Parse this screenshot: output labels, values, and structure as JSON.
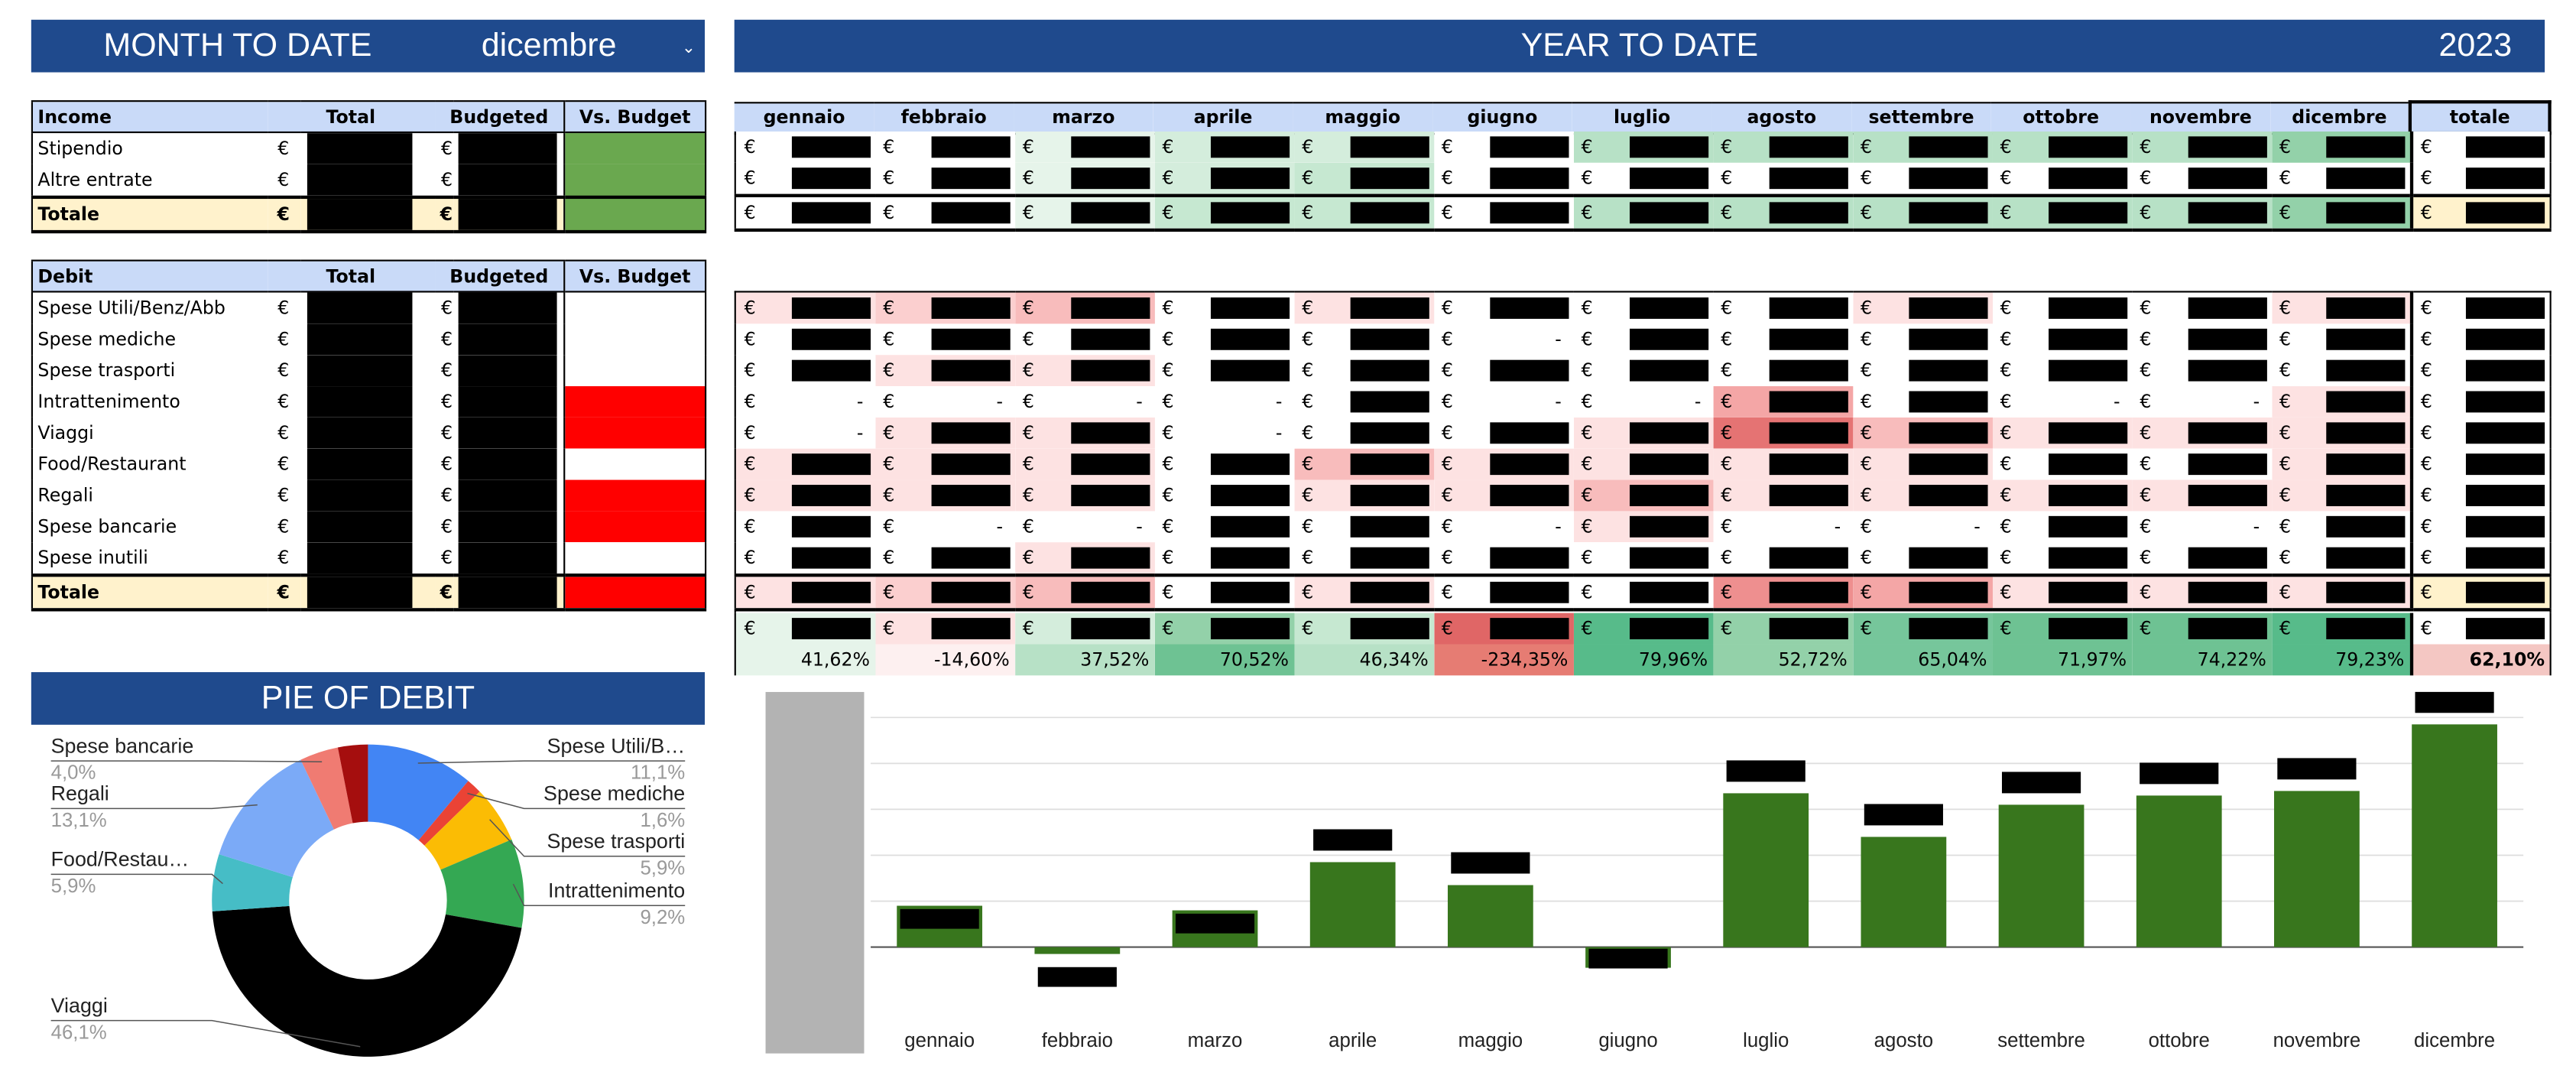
{
  "month_to_date": {
    "title": "MONTH TO DATE",
    "month": "dicembre",
    "dropdown_icon": "caret-down"
  },
  "year_to_date": {
    "title": "YEAR TO DATE",
    "year": "2023"
  },
  "pie": {
    "title": "PIE OF DEBIT"
  },
  "currency": "€",
  "income_table": {
    "headers": [
      "Income",
      "Total",
      "Budgeted",
      "Vs. Budget"
    ],
    "rows": [
      {
        "label": "Stipendio",
        "vs_budget_color": "#6aa84f"
      },
      {
        "label": "Altre entrate",
        "vs_budget_color": "#6aa84f"
      }
    ],
    "total": {
      "label": "Totale",
      "vs_budget_color": "#6aa84f"
    }
  },
  "debit_table": {
    "headers": [
      "Debit",
      "Total",
      "Budgeted",
      "Vs. Budget"
    ],
    "rows": [
      {
        "label": "Spese Utili/Benz/Abb",
        "vs_budget_color": "#ffffff"
      },
      {
        "label": "Spese mediche",
        "vs_budget_color": "#ffffff"
      },
      {
        "label": "Spese trasporti",
        "vs_budget_color": "#ffffff"
      },
      {
        "label": "Intrattenimento",
        "vs_budget_color": "#ff0000"
      },
      {
        "label": "Viaggi",
        "vs_budget_color": "#ff0000"
      },
      {
        "label": "Food/Restaurant",
        "vs_budget_color": "#ffffff"
      },
      {
        "label": "Regali",
        "vs_budget_color": "#ff0000"
      },
      {
        "label": "Spese bancarie",
        "vs_budget_color": "#ff0000"
      },
      {
        "label": "Spese inutili",
        "vs_budget_color": "#ffffff"
      }
    ],
    "total": {
      "label": "Totale",
      "vs_budget_color": "#ff0000"
    }
  },
  "months": [
    "gennaio",
    "febbraio",
    "marzo",
    "aprile",
    "maggio",
    "giugno",
    "luglio",
    "agosto",
    "settembre",
    "ottobre",
    "novembre",
    "dicembre"
  ],
  "total_header": "totale",
  "ytd_income_rows": [
    {
      "dash": [
        0,
        0,
        0,
        0,
        0,
        0,
        0,
        0,
        0,
        0,
        0,
        0,
        0
      ],
      "bg": [
        "#fff",
        "#fff",
        "#e6f4ea",
        "#d4eddc",
        "#d4eddc",
        "#fff",
        "#b7e1c6",
        "#b7e1c6",
        "#b7e1c6",
        "#b7e1c6",
        "#b7e1c6",
        "#93d1a9",
        "#fff"
      ]
    },
    {
      "dash": [
        0,
        0,
        0,
        0,
        0,
        0,
        0,
        0,
        0,
        0,
        0,
        0,
        0
      ],
      "bg": [
        "#fff",
        "#fff",
        "#e6f4ea",
        "#d4eddc",
        "#c6e8d1",
        "#fff",
        "#fff",
        "#fff",
        "#fff",
        "#fff",
        "#fff",
        "#fff",
        "#fff"
      ]
    },
    {
      "dash": [
        0,
        0,
        0,
        0,
        0,
        0,
        0,
        0,
        0,
        0,
        0,
        0,
        0
      ],
      "bg": [
        "#fff",
        "#fff",
        "#e6f4ea",
        "#c6e8d1",
        "#c6e8d1",
        "#fff",
        "#b7e1c6",
        "#b7e1c6",
        "#b7e1c6",
        "#b7e1c6",
        "#b7e1c6",
        "#93d1a9",
        "#fff2cc"
      ]
    }
  ],
  "ytd_debit_rows": [
    {
      "dash": [
        0,
        0,
        0,
        0,
        0,
        0,
        0,
        0,
        0,
        0,
        0,
        0,
        0
      ],
      "bg": [
        "#fde2e2",
        "#fbcfcf",
        "#f8bcbc",
        "#fff",
        "#fde2e2",
        "#fff",
        "#fff",
        "#fff",
        "#fde2e2",
        "#fff",
        "#fff",
        "#fde2e2",
        "#fff"
      ]
    },
    {
      "dash": [
        0,
        0,
        0,
        0,
        0,
        1,
        0,
        0,
        0,
        0,
        0,
        0,
        0
      ],
      "bg": [
        "#fff",
        "#fff",
        "#fff",
        "#fff",
        "#fff",
        "#fff",
        "#fff",
        "#fff",
        "#fff",
        "#fff",
        "#fff",
        "#fff",
        "#fff"
      ]
    },
    {
      "dash": [
        0,
        0,
        0,
        0,
        0,
        0,
        0,
        0,
        0,
        0,
        0,
        0,
        0
      ],
      "bg": [
        "#fff",
        "#fde2e2",
        "#fde2e2",
        "#fff",
        "#fff",
        "#fff",
        "#fff",
        "#fff",
        "#fff",
        "#fff",
        "#fff",
        "#fff",
        "#fff"
      ]
    },
    {
      "dash": [
        1,
        1,
        1,
        1,
        0,
        1,
        1,
        0,
        0,
        1,
        1,
        0,
        0
      ],
      "bg": [
        "#fff",
        "#fff",
        "#fff",
        "#fff",
        "#fff",
        "#fff",
        "#fff",
        "#f4a6a6",
        "#fff",
        "#fff",
        "#fff",
        "#fde2e2",
        "#fff"
      ]
    },
    {
      "dash": [
        1,
        0,
        0,
        1,
        0,
        0,
        0,
        0,
        0,
        0,
        0,
        0,
        0
      ],
      "bg": [
        "#fff",
        "#fde2e2",
        "#fde2e2",
        "#fff",
        "#fff",
        "#fff",
        "#fde2e2",
        "#e57373",
        "#f8bcbc",
        "#fde2e2",
        "#fde2e2",
        "#fde2e2",
        "#fff"
      ]
    },
    {
      "dash": [
        0,
        0,
        0,
        0,
        0,
        0,
        0,
        0,
        0,
        0,
        0,
        0,
        0
      ],
      "bg": [
        "#fde2e2",
        "#fde2e2",
        "#fde2e2",
        "#fff",
        "#f8bcbc",
        "#fde2e2",
        "#fde2e2",
        "#fde2e2",
        "#fde2e2",
        "#fff",
        "#fff",
        "#fde2e2",
        "#fff"
      ]
    },
    {
      "dash": [
        0,
        0,
        0,
        0,
        0,
        0,
        0,
        0,
        0,
        0,
        0,
        0,
        0
      ],
      "bg": [
        "#fde2e2",
        "#fde2e2",
        "#fde2e2",
        "#fff",
        "#fde2e2",
        "#fde2e2",
        "#f8bcbc",
        "#fde2e2",
        "#fde2e2",
        "#fde2e2",
        "#fde2e2",
        "#fde2e2",
        "#fff"
      ]
    },
    {
      "dash": [
        0,
        1,
        1,
        0,
        0,
        1,
        0,
        1,
        1,
        0,
        1,
        0,
        0
      ],
      "bg": [
        "#fff",
        "#fff",
        "#fff",
        "#fff",
        "#fff",
        "#fff",
        "#fde2e2",
        "#fff",
        "#fff",
        "#fff",
        "#fff",
        "#fff",
        "#fff"
      ]
    },
    {
      "dash": [
        0,
        0,
        0,
        0,
        0,
        0,
        0,
        0,
        0,
        0,
        0,
        0,
        0
      ],
      "bg": [
        "#fff",
        "#fff",
        "#fde2e2",
        "#fff",
        "#fff",
        "#fff",
        "#fff",
        "#fff",
        "#fff",
        "#fff",
        "#fff",
        "#fff",
        "#fff"
      ]
    },
    {
      "dash": [
        0,
        0,
        0,
        0,
        0,
        0,
        0,
        0,
        0,
        0,
        0,
        0,
        0
      ],
      "bg": [
        "#fde2e2",
        "#fbcfcf",
        "#f8bcbc",
        "#fff",
        "#fde2e2",
        "#fff",
        "#fff",
        "#ee8f8f",
        "#f4a6a6",
        "#fde2e2",
        "#fde2e2",
        "#fde2e2",
        "#fff2cc"
      ]
    }
  ],
  "ytd_net_row": {
    "bg": [
      "#e6f4ea",
      "#fde2e2",
      "#d4eddc",
      "#93d1a9",
      "#c6e8d1",
      "#e06666",
      "#57bb8a",
      "#93d1a9",
      "#76c69b",
      "#6ec293",
      "#6ec293",
      "#57bb8a",
      "#fff"
    ]
  },
  "ytd_percentages": {
    "values": [
      "41,62%",
      "-14,60%",
      "37,52%",
      "70,52%",
      "46,34%",
      "-234,35%",
      "79,96%",
      "52,72%",
      "65,04%",
      "71,97%",
      "74,22%",
      "79,23%",
      "62,10%"
    ],
    "bg": [
      "#e6f4ea",
      "#fdf0f0",
      "#b7e1c6",
      "#6ec293",
      "#b7e1c6",
      "#e67c73",
      "#57bb8a",
      "#93d1a9",
      "#76c69b",
      "#6ec293",
      "#6ec293",
      "#57bb8a",
      "#f4c7c3"
    ]
  },
  "pie_data": {
    "slices": [
      {
        "label": "Spese Utili/B…",
        "pct": "11,1%",
        "value": 11.1,
        "color": "#4285f4"
      },
      {
        "label": "Spese mediche",
        "pct": "1,6%",
        "value": 1.6,
        "color": "#ea4335"
      },
      {
        "label": "Spese trasporti",
        "pct": "5,9%",
        "value": 5.9,
        "color": "#fbbc04"
      },
      {
        "label": "Intrattenimento",
        "pct": "9,2%",
        "value": 9.2,
        "color": "#34a853"
      },
      {
        "label": "Viaggi",
        "pct": "46,1%",
        "value": 46.1,
        "color": "#000000"
      },
      {
        "label": "Food/Restau…",
        "pct": "5,9%",
        "value": 5.9,
        "color": "#46bdc6"
      },
      {
        "label": "Regali",
        "pct": "13,1%",
        "value": 13.1,
        "color": "#7baaf7"
      },
      {
        "label": "Spese bancarie",
        "pct": "4,0%",
        "value": 4.0,
        "color": "#f07b72"
      },
      {
        "label": "Spese inutili",
        "pct": "",
        "value": 3.1,
        "color": "#a50e0e"
      }
    ]
  },
  "chart_data": {
    "type": "bar",
    "categories": [
      "gennaio",
      "febbraio",
      "marzo",
      "aprile",
      "maggio",
      "giugno",
      "luglio",
      "agosto",
      "settembre",
      "ottobre",
      "novembre",
      "dicembre"
    ],
    "values": [
      0.9,
      -0.15,
      0.8,
      1.85,
      1.35,
      -0.45,
      3.35,
      2.4,
      3.1,
      3.3,
      3.4,
      4.85
    ],
    "bar_color": "#38761d",
    "grid": true,
    "ylim": [
      -1.6,
      5.2
    ]
  }
}
